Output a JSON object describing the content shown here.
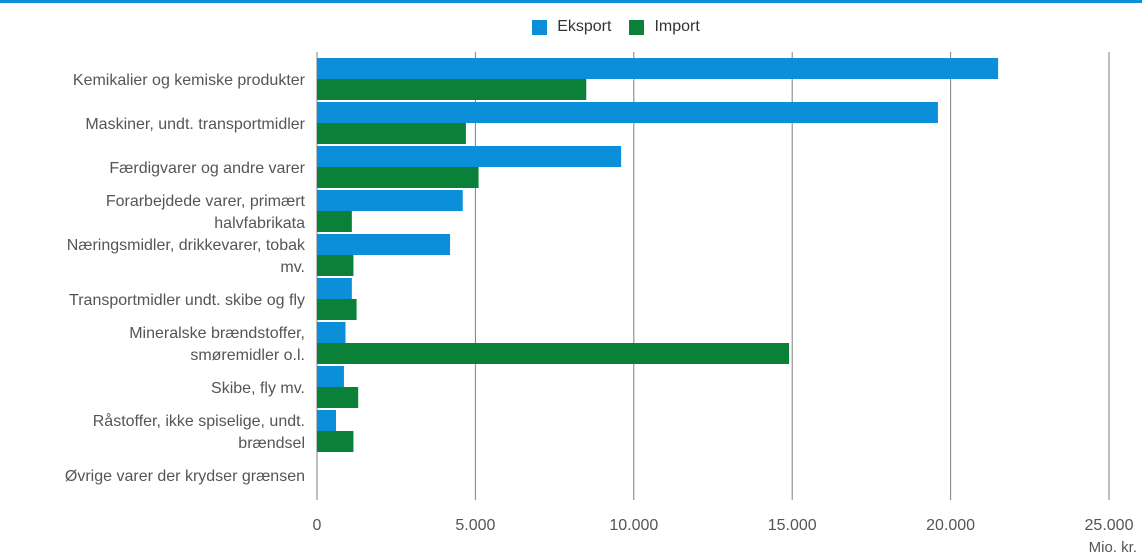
{
  "colors": {
    "eksport": "#0a8fd8",
    "import": "#0b8038",
    "grid": "#7f7f7f",
    "text": "#555555",
    "rule": "#0a8fd8"
  },
  "legend": {
    "eksport_label": "Eksport",
    "import_label": "Import"
  },
  "chart_data": {
    "type": "bar",
    "orientation": "horizontal",
    "categories": [
      [
        "Kemikalier og kemiske produkter"
      ],
      [
        "Maskiner, undt. transportmidler"
      ],
      [
        "Færdigvarer og andre varer"
      ],
      [
        "Forarbejdede varer, primært",
        "halvfabrikata"
      ],
      [
        "Næringsmidler, drikkevarer, tobak",
        "mv."
      ],
      [
        "Transportmidler undt. skibe og fly"
      ],
      [
        "Mineralske brændstoffer,",
        "smøremidler o.l."
      ],
      [
        "Skibe, fly mv."
      ],
      [
        "Råstoffer, ikke spiselige, undt.",
        "brændsel"
      ],
      [
        "Øvrige varer der krydser grænsen"
      ]
    ],
    "series": [
      {
        "name": "Eksport",
        "values": [
          21500,
          19600,
          9600,
          4600,
          4200,
          1100,
          900,
          850,
          600,
          0
        ]
      },
      {
        "name": "Import",
        "values": [
          8500,
          4700,
          5100,
          1100,
          1150,
          1250,
          14900,
          1300,
          1150,
          0
        ]
      }
    ],
    "xlim": [
      0,
      25000
    ],
    "xticks": [
      0,
      5000,
      10000,
      15000,
      20000,
      25000
    ],
    "xtick_labels": [
      "0",
      "5.000",
      "10.000",
      "15.000",
      "20.000",
      "25.000"
    ],
    "xlabel": "Mio. kr.",
    "grid": "vertical",
    "legend_position": "top"
  }
}
